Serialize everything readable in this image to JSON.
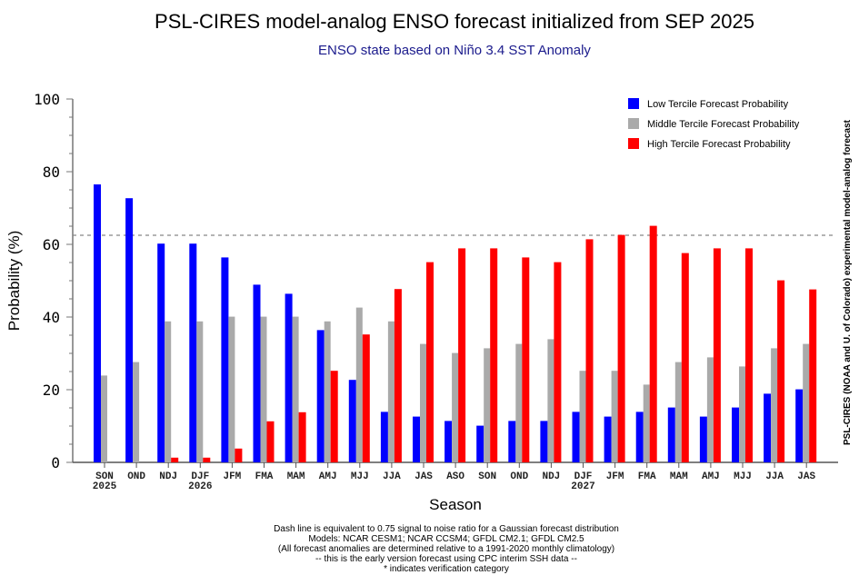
{
  "chart_data": {
    "type": "bar",
    "title": "PSL-CIRES model-analog ENSO forecast initialized from SEP 2025",
    "subtitle": "ENSO state based on Niño 3.4 SST Anomaly",
    "xlabel": "Season",
    "ylabel": "Probability (%)",
    "ylim": [
      0,
      100
    ],
    "yticks": [
      0,
      20,
      40,
      60,
      80,
      100
    ],
    "grid": false,
    "legend_position": "top-right",
    "categories": [
      "SON",
      "OND",
      "NDJ",
      "DJF",
      "JFM",
      "FMA",
      "MAM",
      "AMJ",
      "MJJ",
      "JJA",
      "JAS",
      "ASO",
      "SON",
      "OND",
      "NDJ",
      "DJF",
      "JFM",
      "FMA",
      "MAM",
      "AMJ",
      "MJJ",
      "JJA",
      "JAS"
    ],
    "category_sublabels": [
      "2025",
      "",
      "",
      "2026",
      "",
      "",
      "",
      "",
      "",
      "",
      "",
      "",
      "",
      "",
      "",
      "2027",
      "",
      "",
      "",
      "",
      "",
      "",
      ""
    ],
    "series": [
      {
        "name": "Low Tercile Forecast Probability",
        "color": "#0000ff",
        "values": [
          76.5,
          72.7,
          60.2,
          60.2,
          56.4,
          48.9,
          46.4,
          36.4,
          22.7,
          13.9,
          12.6,
          11.4,
          10.1,
          11.4,
          11.4,
          13.9,
          12.6,
          13.9,
          15.1,
          12.6,
          15.1,
          18.9,
          20.1
        ]
      },
      {
        "name": "Middle Tercile Forecast Probability",
        "color": "#aaaaaa",
        "values": [
          23.9,
          27.6,
          38.8,
          38.8,
          40.1,
          40.1,
          40.1,
          38.8,
          42.6,
          38.8,
          32.6,
          30.1,
          31.4,
          32.6,
          33.9,
          25.2,
          25.2,
          21.4,
          27.6,
          28.9,
          26.4,
          31.4,
          32.6
        ]
      },
      {
        "name": "High Tercile Forecast Probability",
        "color": "#ff0000",
        "values": [
          0.0,
          0.0,
          1.3,
          1.3,
          3.8,
          11.3,
          13.8,
          25.2,
          35.2,
          47.7,
          55.1,
          58.9,
          58.9,
          56.4,
          55.1,
          61.4,
          62.6,
          65.1,
          57.6,
          58.9,
          58.9,
          50.1,
          47.6
        ]
      }
    ],
    "reference_line": {
      "value": 62.5,
      "style": "dashed"
    },
    "side_note": "PSL-CIRES (NOAA and U. of Colorado) experimental model-analog forecast",
    "footer_lines": [
      "Dash line is equivalent to 0.75 signal to noise ratio for a Gaussian forecast distribution",
      "Models: NCAR CESM1; NCAR CCSM4; GFDL CM2.1; GFDL CM2.5",
      "(All forecast anomalies are determined relative to a 1991-2020 monthly climatology)",
      "-- this is the early version forecast using CPC interim SSH data --",
      "* indicates verification category"
    ]
  }
}
